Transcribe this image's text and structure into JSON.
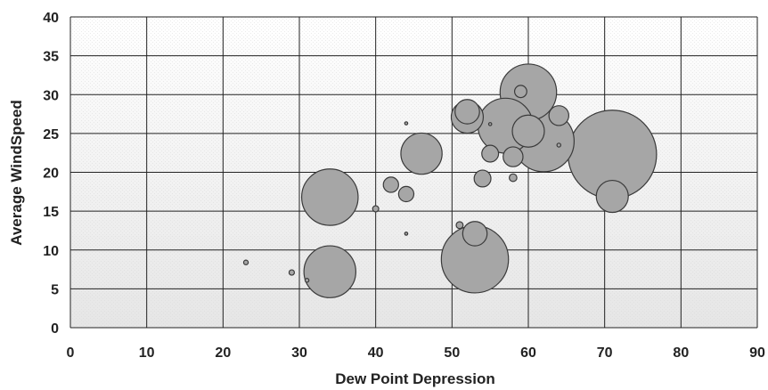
{
  "chart_data": {
    "type": "bubble",
    "title": "",
    "xlabel": "Dew Point Depression",
    "ylabel": "Average WindSpeed",
    "xlim": [
      0,
      90
    ],
    "ylim": [
      0,
      40
    ],
    "xticks": [
      "0",
      "10",
      "20",
      "30",
      "40",
      "50",
      "60",
      "70",
      "80",
      "90"
    ],
    "yticks": [
      "0",
      "5",
      "10",
      "15",
      "20",
      "25",
      "30",
      "35",
      "40"
    ],
    "grid": true,
    "legend": "none",
    "colors": {
      "bubble_fill": "#a6a6a6",
      "bubble_stroke": "#3a3a3a",
      "plot_bg_top": "#ffffff",
      "plot_bg_bottom": "#e6e6e6"
    },
    "points": [
      {
        "x": 71,
        "y": 22.3,
        "size": 5.8
      },
      {
        "x": 53,
        "y": 8.8,
        "size": 4.4
      },
      {
        "x": 62,
        "y": 24.0,
        "size": 4.0
      },
      {
        "x": 60,
        "y": 30.3,
        "size": 3.7
      },
      {
        "x": 57,
        "y": 26.0,
        "size": 3.6
      },
      {
        "x": 34,
        "y": 16.8,
        "size": 3.7
      },
      {
        "x": 34,
        "y": 7.2,
        "size": 3.4
      },
      {
        "x": 46,
        "y": 22.4,
        "size": 2.7
      },
      {
        "x": 71,
        "y": 16.9,
        "size": 2.1
      },
      {
        "x": 60,
        "y": 25.3,
        "size": 2.1
      },
      {
        "x": 52,
        "y": 27.1,
        "size": 2.1
      },
      {
        "x": 52,
        "y": 27.8,
        "size": 1.6
      },
      {
        "x": 53,
        "y": 12.1,
        "size": 1.6
      },
      {
        "x": 58,
        "y": 22.0,
        "size": 1.3
      },
      {
        "x": 64,
        "y": 27.3,
        "size": 1.3
      },
      {
        "x": 55,
        "y": 22.4,
        "size": 1.1
      },
      {
        "x": 54,
        "y": 19.2,
        "size": 1.1
      },
      {
        "x": 42,
        "y": 18.4,
        "size": 1.0
      },
      {
        "x": 44,
        "y": 17.2,
        "size": 1.0
      },
      {
        "x": 59,
        "y": 30.4,
        "size": 0.8
      },
      {
        "x": 58,
        "y": 19.3,
        "size": 0.5
      },
      {
        "x": 51,
        "y": 13.2,
        "size": 0.45
      },
      {
        "x": 40,
        "y": 15.3,
        "size": 0.4
      },
      {
        "x": 29,
        "y": 7.1,
        "size": 0.35
      },
      {
        "x": 23,
        "y": 8.4,
        "size": 0.3
      },
      {
        "x": 64,
        "y": 23.5,
        "size": 0.25
      },
      {
        "x": 31,
        "y": 6.1,
        "size": 0.25
      },
      {
        "x": 55,
        "y": 26.2,
        "size": 0.2
      },
      {
        "x": 44,
        "y": 26.3,
        "size": 0.2
      },
      {
        "x": 44,
        "y": 12.1,
        "size": 0.2
      }
    ]
  }
}
